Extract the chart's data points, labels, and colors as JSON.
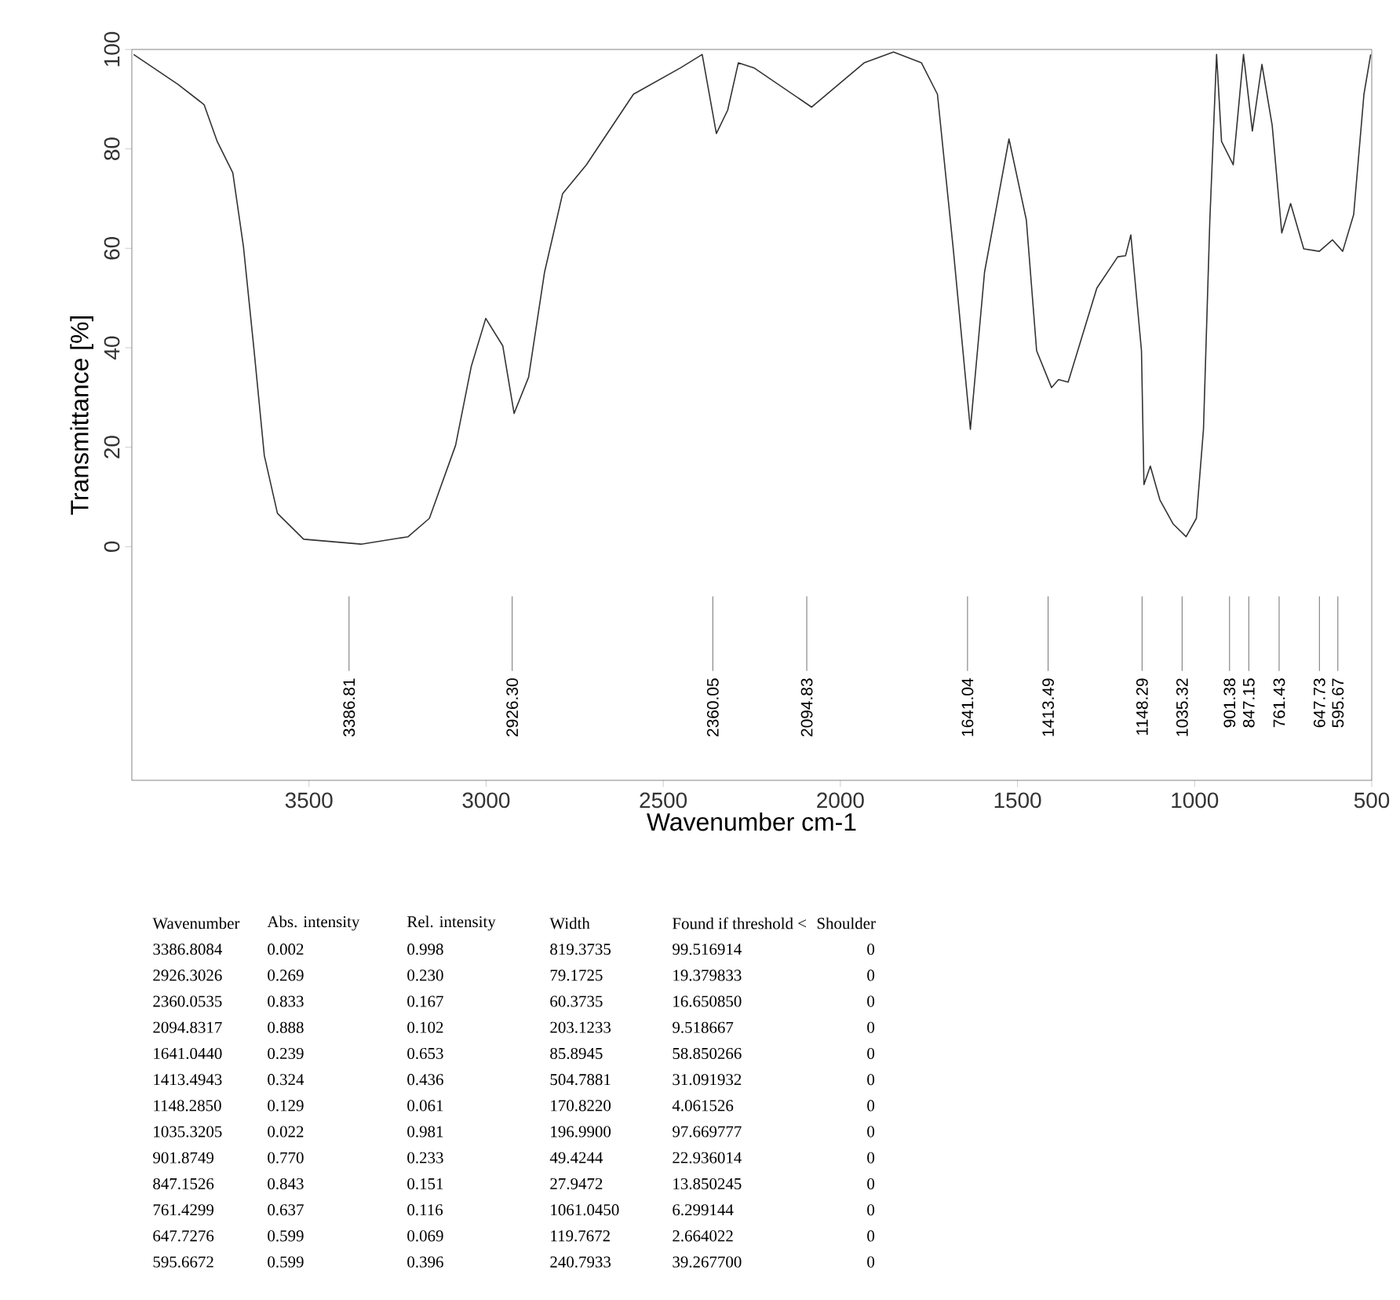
{
  "chart_data": {
    "type": "line",
    "xlabel": "Wavenumber cm-1",
    "ylabel": "Transmittance [%]",
    "color": "#333333",
    "xlim": [
      4000,
      500
    ],
    "ylim": [
      -47,
      100
    ],
    "xticks": [
      3500,
      3000,
      2500,
      2000,
      1500,
      1000,
      500
    ],
    "yticks": [
      0,
      20,
      40,
      60,
      80,
      100
    ],
    "x": [
      3995,
      3870,
      3796,
      3759,
      3715,
      3685,
      3655,
      3626,
      3589,
      3515,
      3353,
      3220,
      3160,
      3086,
      3042,
      3001,
      2953,
      2921,
      2880,
      2835,
      2784,
      2717,
      2584,
      2451,
      2390,
      2350,
      2318,
      2288,
      2244,
      2081,
      1933,
      1850,
      1771,
      1726,
      1682,
      1633,
      1593,
      1524,
      1475,
      1446,
      1404,
      1384,
      1357,
      1276,
      1217,
      1195,
      1180,
      1150,
      1143,
      1125,
      1098,
      1061,
      1024,
      995,
      975,
      957,
      938,
      924,
      891,
      862,
      837,
      810,
      781,
      754,
      729,
      692,
      648,
      611,
      582,
      551,
      522,
      503
    ],
    "values": [
      99,
      93,
      88.9,
      81.5,
      75.2,
      60.4,
      39.5,
      18.3,
      6.7,
      1.5,
      0.5,
      2.0,
      5.7,
      20.4,
      36.2,
      45.9,
      40.4,
      26.8,
      34.1,
      55.2,
      71,
      76.8,
      91,
      96.3,
      99,
      83.1,
      87.8,
      97.3,
      96.3,
      88.4,
      97.3,
      99.5,
      97.3,
      91,
      60.4,
      23.6,
      55.2,
      82,
      65.7,
      39.4,
      32,
      33.6,
      33.1,
      52,
      58.3,
      58.5,
      62.7,
      39.4,
      12.5,
      16.2,
      9.4,
      4.6,
      2.0,
      5.7,
      23.6,
      65.7,
      99,
      81.5,
      76.8,
      99,
      83.6,
      97,
      84.7,
      63.1,
      69,
      59.9,
      59.4,
      61.7,
      59.4,
      66.8,
      91,
      99
    ],
    "ref_lines": [
      {
        "axis": "x",
        "value": 3386.81,
        "label": "3386.81"
      },
      {
        "axis": "x",
        "value": 2926.3,
        "label": "2926.30"
      },
      {
        "axis": "x",
        "value": 2360.05,
        "label": "2360.05"
      },
      {
        "axis": "x",
        "value": 2094.83,
        "label": "2094.83"
      },
      {
        "axis": "x",
        "value": 1641.04,
        "label": "1641.04"
      },
      {
        "axis": "x",
        "value": 1413.49,
        "label": "1413.49"
      },
      {
        "axis": "x",
        "value": 1148.29,
        "label": "1148.29"
      },
      {
        "axis": "x",
        "value": 1035.32,
        "label": "1035.32"
      },
      {
        "axis": "x",
        "value": 901.38,
        "label": "901.38"
      },
      {
        "axis": "x",
        "value": 847.15,
        "label": "847.15"
      },
      {
        "axis": "x",
        "value": 761.43,
        "label": "761.43"
      },
      {
        "axis": "x",
        "value": 647.73,
        "label": "647.73"
      },
      {
        "axis": "x",
        "value": 595.67,
        "label": "595.67"
      }
    ],
    "annotations": [
      "Wavenumber",
      "Abs. intensity",
      "Rel. intensity",
      "Width",
      "Found if threshold <",
      "Shoulder",
      "3386.8084",
      "0.002",
      "0.998",
      "819.3735",
      "99.516914",
      "0",
      "2926.3026",
      "0.269",
      "0.230",
      "79.1725",
      "19.379833",
      "0",
      "2360.0535",
      "0.833",
      "0.167",
      "60.3735",
      "16.650850",
      "0",
      "2094.8317",
      "0.888",
      "0.102",
      "203.1233",
      "9.518667",
      "0",
      "1641.0440",
      "0.239",
      "0.653",
      "85.8945",
      "58.850266",
      "0",
      "1413.4943",
      "0.324",
      "0.436",
      "504.7881",
      "31.091932",
      "0",
      "1148.2850",
      "0.129",
      "0.061",
      "170.8220",
      "4.061526",
      "0",
      "1035.3205",
      "0.022",
      "0.981",
      "196.9900",
      "97.669777",
      "0",
      "901.8749",
      "0.770",
      "0.233",
      "49.4244",
      "22.936014",
      "0",
      "847.1526",
      "0.843",
      "0.151",
      "27.9472",
      "13.850245",
      "0",
      "761.4299",
      "0.637",
      "0.116",
      "1061.0450",
      "6.299144",
      "0",
      "647.7276",
      "0.599",
      "0.069",
      "119.7672",
      "2.664022",
      "0",
      "595.6672",
      "0.599",
      "0.396",
      "240.7933",
      "39.267700",
      "0"
    ]
  }
}
